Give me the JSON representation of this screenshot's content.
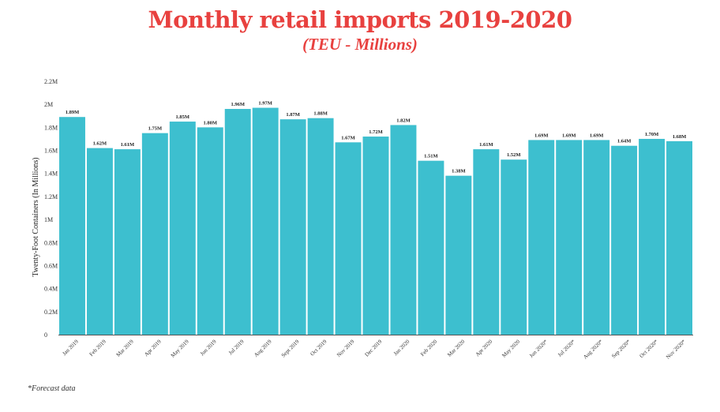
{
  "colors": {
    "title": "#e8413f",
    "bar": "#3dbfcf",
    "axis": "#555555"
  },
  "header": {
    "title": "Monthly retail imports 2019-2020",
    "subtitle": "(TEU - Millions)"
  },
  "footnote": "*Forecast data",
  "chart_data": {
    "type": "bar",
    "title": "Monthly retail imports 2019-2020",
    "subtitle": "(TEU - Millions)",
    "xlabel": "",
    "ylabel": "Twenty-Foot Containers (In Millions)",
    "ylim": [
      0,
      2.2
    ],
    "yticks": [
      0,
      0.2,
      0.4,
      0.6,
      0.8,
      1.0,
      1.2,
      1.4,
      1.6,
      1.8,
      2.0,
      2.2
    ],
    "ytick_labels": [
      "0",
      "0.2M",
      "0.4M",
      "0.6M",
      "0.8M",
      "1M",
      "1.2M",
      "1.4M",
      "1.6M",
      "1.8M",
      "2M",
      "2.2M"
    ],
    "grid": false,
    "categories": [
      "Jan 2019",
      "Feb 2019",
      "Mar 2019",
      "Apr 2019",
      "May 2019",
      "Jun 2019",
      "Jul 2019",
      "Aug 2019",
      "Sept 2019",
      "Oct 2019",
      "Nov 2019",
      "Dec 2019",
      "Jan 2020",
      "Feb 2020",
      "Mar 2020",
      "Apr 2020",
      "May 2020",
      "Jun 2020*",
      "Jul 2020*",
      "Aug 2020*",
      "Sep 2020*",
      "Oct 2020*",
      "Nov 2020*"
    ],
    "values": [
      1.89,
      1.62,
      1.61,
      1.75,
      1.85,
      1.8,
      1.96,
      1.97,
      1.87,
      1.88,
      1.67,
      1.72,
      1.82,
      1.51,
      1.38,
      1.61,
      1.52,
      1.69,
      1.69,
      1.69,
      1.64,
      1.7,
      1.68
    ],
    "data_labels": [
      "1.89M",
      "1.62M",
      "1.61M",
      "1.75M",
      "1.85M",
      "1.80M",
      "1.96M",
      "1.97M",
      "1.87M",
      "1.88M",
      "1.67M",
      "1.72M",
      "1.82M",
      "1.51M",
      "1.38M",
      "1.61M",
      "1.52M",
      "1.69M",
      "1.69M",
      "1.69M",
      "1.64M",
      "1.70M",
      "1.68M"
    ]
  }
}
